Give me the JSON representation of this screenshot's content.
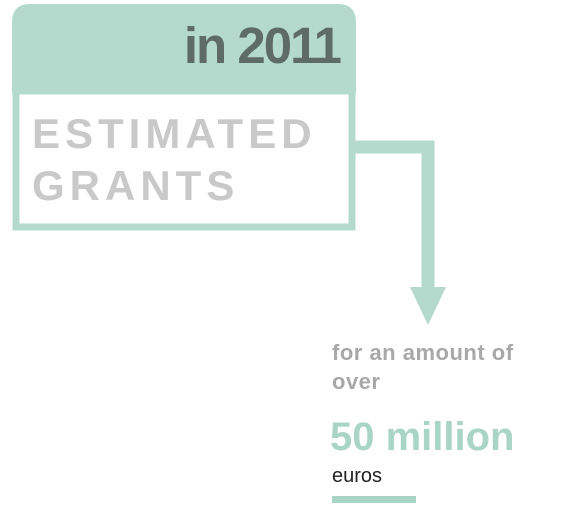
{
  "year_label": "in 2011",
  "title_lines": [
    "ESTIMATED",
    "GRANTS"
  ],
  "amount": {
    "intro": "for an amount of over",
    "value": "50 million",
    "unit": "euros"
  },
  "colors": {
    "accent": "#b4d9cd",
    "accent_dark": "#a9d5c7",
    "year_text": "#5f6b67",
    "title_text": "#c9c9c9",
    "intro_text": "#a8a8a8",
    "unit_text": "#222222"
  }
}
